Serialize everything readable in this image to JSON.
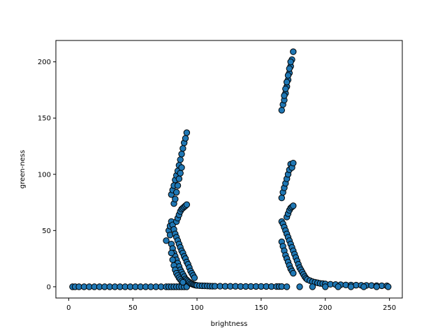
{
  "chart_data": {
    "type": "scatter",
    "xlabel": "brightness",
    "ylabel": "green-ness",
    "xlim": [
      -10,
      260
    ],
    "ylim": [
      -10,
      219
    ],
    "xticks": [
      0,
      50,
      100,
      150,
      200,
      250
    ],
    "yticks": [
      0,
      50,
      100,
      150,
      200
    ],
    "grid": false,
    "colors": {
      "marker_fill": "#1f77b4",
      "marker_edge": "#000000"
    },
    "series": [
      {
        "points": [
          [
            3,
            0
          ],
          [
            5,
            0
          ],
          [
            8,
            0
          ],
          [
            12,
            0
          ],
          [
            16,
            0
          ],
          [
            20,
            0
          ],
          [
            24,
            0
          ],
          [
            28,
            0
          ],
          [
            32,
            0
          ],
          [
            36,
            0
          ],
          [
            40,
            0
          ],
          [
            44,
            0
          ],
          [
            48,
            0
          ],
          [
            52,
            0
          ],
          [
            56,
            0
          ],
          [
            60,
            0
          ],
          [
            64,
            0
          ],
          [
            68,
            0
          ],
          [
            72,
            0
          ],
          [
            76,
            0
          ],
          [
            78,
            0
          ],
          [
            80,
            0
          ],
          [
            82,
            0
          ],
          [
            84,
            0
          ],
          [
            86,
            0
          ],
          [
            88,
            0
          ],
          [
            90,
            0
          ],
          [
            92,
            0
          ],
          [
            76,
            41
          ],
          [
            78,
            50
          ],
          [
            79,
            46
          ],
          [
            80,
            38
          ],
          [
            81,
            34
          ],
          [
            82,
            30
          ],
          [
            83,
            27
          ],
          [
            84,
            24
          ],
          [
            85,
            21
          ],
          [
            86,
            18
          ],
          [
            87,
            15
          ],
          [
            88,
            13
          ],
          [
            89,
            11
          ],
          [
            90,
            9
          ],
          [
            91,
            7
          ],
          [
            92,
            6
          ],
          [
            93,
            5
          ],
          [
            94,
            4
          ],
          [
            95,
            3
          ],
          [
            96,
            2.5
          ],
          [
            97,
            2
          ],
          [
            98,
            1.7
          ],
          [
            99,
            1.4
          ],
          [
            100,
            1.2
          ],
          [
            102,
            1
          ],
          [
            104,
            0.9
          ],
          [
            106,
            0.8
          ],
          [
            108,
            0.7
          ],
          [
            110,
            0.6
          ],
          [
            112,
            0.5
          ],
          [
            80,
            82
          ],
          [
            81,
            86
          ],
          [
            82,
            90
          ],
          [
            83,
            95
          ],
          [
            84,
            99
          ],
          [
            85,
            103
          ],
          [
            86,
            108
          ],
          [
            87,
            113
          ],
          [
            88,
            118
          ],
          [
            89,
            123
          ],
          [
            90,
            128
          ],
          [
            91,
            132
          ],
          [
            92,
            137
          ],
          [
            82,
            74
          ],
          [
            83,
            78
          ],
          [
            84,
            84
          ],
          [
            85,
            90
          ],
          [
            86,
            96
          ],
          [
            87,
            101
          ],
          [
            88,
            106
          ],
          [
            79,
            54
          ],
          [
            80,
            58
          ],
          [
            81,
            55
          ],
          [
            82,
            51
          ],
          [
            83,
            47
          ],
          [
            84,
            44
          ],
          [
            85,
            41
          ],
          [
            86,
            38
          ],
          [
            87,
            35
          ],
          [
            88,
            32
          ],
          [
            89,
            30
          ],
          [
            90,
            27
          ],
          [
            91,
            25
          ],
          [
            92,
            22
          ],
          [
            93,
            20
          ],
          [
            94,
            17
          ],
          [
            95,
            14
          ],
          [
            96,
            12
          ],
          [
            97,
            10
          ],
          [
            98,
            8
          ],
          [
            84,
            58
          ],
          [
            85,
            61
          ],
          [
            86,
            64
          ],
          [
            87,
            67
          ],
          [
            88,
            69
          ],
          [
            89,
            70
          ],
          [
            90,
            71
          ],
          [
            91,
            72
          ],
          [
            92,
            73
          ],
          [
            80,
            30
          ],
          [
            81,
            24
          ],
          [
            82,
            19
          ],
          [
            83,
            15
          ],
          [
            84,
            12
          ],
          [
            85,
            10
          ],
          [
            86,
            8
          ],
          [
            87,
            6.5
          ],
          [
            88,
            5
          ],
          [
            89,
            4
          ],
          [
            114,
            0.5
          ],
          [
            118,
            0.5
          ],
          [
            122,
            0.4
          ],
          [
            126,
            0.4
          ],
          [
            130,
            0.4
          ],
          [
            134,
            0.3
          ],
          [
            138,
            0.3
          ],
          [
            142,
            0.3
          ],
          [
            146,
            0.3
          ],
          [
            150,
            0.3
          ],
          [
            154,
            0.3
          ],
          [
            158,
            0.2
          ],
          [
            162,
            0.2
          ],
          [
            164,
            0.2
          ],
          [
            166,
            0.2
          ],
          [
            166,
            157
          ],
          [
            167,
            162
          ],
          [
            168,
            166
          ],
          [
            169,
            172
          ],
          [
            170,
            178
          ],
          [
            171,
            184
          ],
          [
            172,
            190
          ],
          [
            173,
            196
          ],
          [
            174,
            202
          ],
          [
            175,
            209
          ],
          [
            168,
            170
          ],
          [
            169,
            176
          ],
          [
            170,
            182
          ],
          [
            171,
            188
          ],
          [
            172,
            194
          ],
          [
            173,
            200
          ],
          [
            166,
            79
          ],
          [
            167,
            84
          ],
          [
            168,
            88
          ],
          [
            169,
            92
          ],
          [
            170,
            96
          ],
          [
            171,
            100
          ],
          [
            172,
            104
          ],
          [
            173,
            109
          ],
          [
            174,
            106
          ],
          [
            175,
            110
          ],
          [
            166,
            58
          ],
          [
            167,
            56
          ],
          [
            168,
            53
          ],
          [
            169,
            50
          ],
          [
            170,
            47
          ],
          [
            171,
            44
          ],
          [
            172,
            41
          ],
          [
            173,
            38
          ],
          [
            174,
            35
          ],
          [
            175,
            32
          ],
          [
            176,
            29
          ],
          [
            177,
            26
          ],
          [
            178,
            23
          ],
          [
            179,
            20
          ],
          [
            180,
            17
          ],
          [
            181,
            15
          ],
          [
            182,
            13
          ],
          [
            183,
            11
          ],
          [
            184,
            9
          ],
          [
            185,
            7.5
          ],
          [
            166,
            40
          ],
          [
            167,
            36
          ],
          [
            168,
            32
          ],
          [
            169,
            28
          ],
          [
            170,
            25
          ],
          [
            171,
            22
          ],
          [
            172,
            19
          ],
          [
            173,
            16
          ],
          [
            174,
            14
          ],
          [
            175,
            12
          ],
          [
            170,
            62
          ],
          [
            171,
            65
          ],
          [
            172,
            68
          ],
          [
            173,
            70
          ],
          [
            174,
            71
          ],
          [
            175,
            72
          ],
          [
            186,
            6.5
          ],
          [
            188,
            5.5
          ],
          [
            190,
            4.5
          ],
          [
            192,
            4
          ],
          [
            194,
            3.5
          ],
          [
            196,
            3
          ],
          [
            198,
            2.8
          ],
          [
            200,
            2.5
          ],
          [
            204,
            2.2
          ],
          [
            208,
            2
          ],
          [
            212,
            1.8
          ],
          [
            216,
            1.6
          ],
          [
            220,
            1.5
          ],
          [
            224,
            1.4
          ],
          [
            228,
            1.3
          ],
          [
            232,
            1.2
          ],
          [
            236,
            1.1
          ],
          [
            240,
            1
          ],
          [
            244,
            0.9
          ],
          [
            248,
            0.8
          ],
          [
            170,
            0
          ],
          [
            180,
            0
          ],
          [
            190,
            0
          ],
          [
            200,
            0
          ],
          [
            210,
            0
          ],
          [
            220,
            0
          ],
          [
            230,
            0
          ],
          [
            240,
            0
          ],
          [
            249,
            0
          ]
        ]
      }
    ]
  }
}
